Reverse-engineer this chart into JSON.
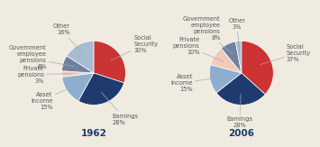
{
  "chart1": {
    "year": "1962",
    "labels": [
      "Social\nSecurity",
      "Earnings",
      "Asset\nincome",
      "Private\npensions",
      "Government\nemployee\npensions",
      "Other"
    ],
    "short_labels": [
      "Social\nSecurity\n30%",
      "Earnings\n28%",
      "Asset\nincome\n15%",
      "Private\npensions\n3%",
      "Government\nemployee\npensions\n8%",
      "Other\n16%"
    ],
    "values": [
      30,
      28,
      15,
      3,
      8,
      16
    ],
    "colors": [
      "#cc3333",
      "#1e3a6e",
      "#8eaecf",
      "#f2cbb8",
      "#7080a0",
      "#a8bcd0"
    ],
    "startangle": 90
  },
  "chart2": {
    "year": "2006",
    "labels": [
      "Social\nSecurity",
      "Earnings",
      "Asset\nincome",
      "Private\npensions",
      "Government\nemployee\npensions",
      "Other"
    ],
    "short_labels": [
      "Social\nSecurity\n37%",
      "Earnings\n28%",
      "Asset\nincome\n15%",
      "Private\npensions\n10%",
      "Government\nemployee\npensions\n8%",
      "Other\n3%"
    ],
    "values": [
      37,
      28,
      15,
      10,
      8,
      3
    ],
    "colors": [
      "#cc3333",
      "#1e3a6e",
      "#8eaecf",
      "#f2cbb8",
      "#7080a0",
      "#a8bcd0"
    ],
    "startangle": 90
  },
  "background_color": "#f0ebe0",
  "label_fontsize": 4.8,
  "year_fontsize": 7.5,
  "label_color": "#555555"
}
